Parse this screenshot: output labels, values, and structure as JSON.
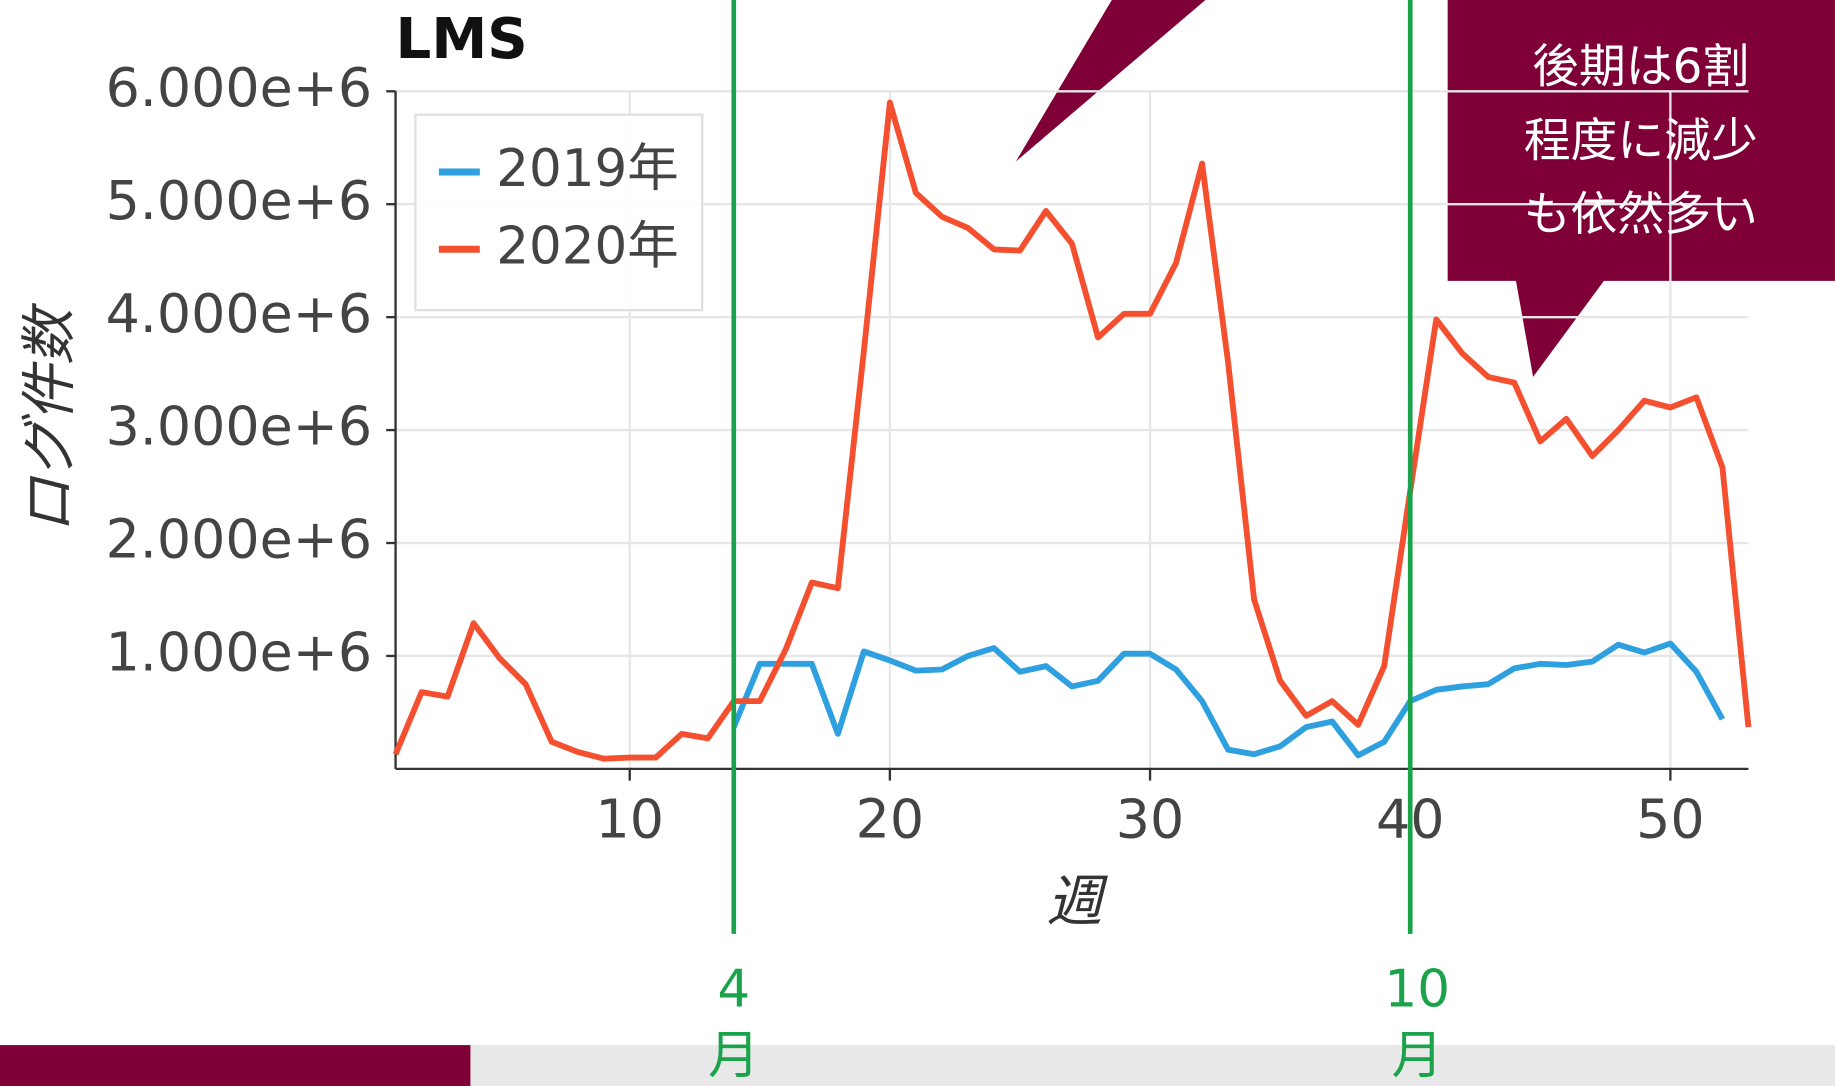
{
  "chart_data": {
    "type": "line",
    "title": "LMS",
    "x_label": "週",
    "y_label": "ログ件数",
    "x": [
      1,
      2,
      3,
      4,
      5,
      6,
      7,
      8,
      9,
      10,
      11,
      12,
      13,
      14,
      15,
      16,
      17,
      18,
      19,
      20,
      21,
      22,
      23,
      24,
      25,
      26,
      27,
      28,
      29,
      30,
      31,
      32,
      33,
      34,
      35,
      36,
      37,
      38,
      39,
      40,
      41,
      42,
      43,
      44,
      45,
      46,
      47,
      48,
      49,
      50,
      51,
      52,
      53
    ],
    "series": [
      {
        "name": "2019年",
        "color": "#2e9fdf",
        "values": [
          null,
          null,
          null,
          null,
          null,
          null,
          null,
          null,
          null,
          null,
          null,
          null,
          null,
          370000,
          930000,
          930000,
          930000,
          310000,
          1040000,
          960000,
          870000,
          880000,
          1000000,
          1070000,
          860000,
          910000,
          730000,
          780000,
          1020000,
          1020000,
          880000,
          600000,
          170000,
          130000,
          200000,
          370000,
          420000,
          120000,
          240000,
          600000,
          700000,
          730000,
          750000,
          890000,
          930000,
          920000,
          950000,
          1100000,
          1030000,
          1110000,
          860000,
          440000,
          null
        ]
      },
      {
        "name": "2020年",
        "color": "#f4502f",
        "values": [
          130000,
          680000,
          640000,
          1290000,
          980000,
          750000,
          240000,
          150000,
          90000,
          100000,
          100000,
          310000,
          270000,
          600000,
          600000,
          1060000,
          1650000,
          1600000,
          3700000,
          5900000,
          5100000,
          4890000,
          4790000,
          4600000,
          4590000,
          4940000,
          4650000,
          3820000,
          4030000,
          4030000,
          4480000,
          5360000,
          3600000,
          1500000,
          780000,
          470000,
          600000,
          390000,
          910000,
          2460000,
          3980000,
          3680000,
          3470000,
          3420000,
          2900000,
          3100000,
          2770000,
          3000000,
          3260000,
          3200000,
          3290000,
          2670000,
          370000
        ]
      }
    ],
    "xlim": [
      1,
      53
    ],
    "xticks": [
      10,
      20,
      30,
      40,
      50
    ],
    "ylim": [
      0,
      6000000
    ],
    "yticks": [
      {
        "value": 1000000,
        "label": "1.000e+6"
      },
      {
        "value": 2000000,
        "label": "2.000e+6"
      },
      {
        "value": 3000000,
        "label": "3.000e+6"
      },
      {
        "value": 4000000,
        "label": "4.000e+6"
      },
      {
        "value": 5000000,
        "label": "5.000e+6"
      },
      {
        "value": 6000000,
        "label": "6.000e+6"
      }
    ],
    "grid": true,
    "legend": "upper left",
    "annotations": [
      {
        "x": 14,
        "label_lines": [
          "4",
          "月"
        ],
        "color": "#1aa34a"
      },
      {
        "x": 40,
        "label_lines": [
          "10",
          "月"
        ],
        "color": "#1aa34a"
      }
    ],
    "callout": {
      "lines": [
        "後期は6割",
        "程度に減少",
        "も依然多い"
      ]
    }
  }
}
